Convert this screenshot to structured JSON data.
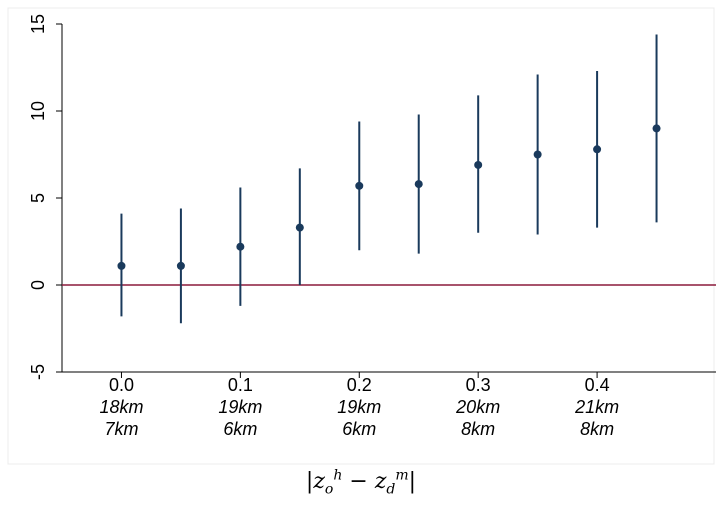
{
  "chart_data": {
    "type": "scatter",
    "subtype": "coefficient-plot-with-confidence-intervals",
    "x": [
      0.0,
      0.05,
      0.1,
      0.15,
      0.2,
      0.25,
      0.3,
      0.35,
      0.4,
      0.45
    ],
    "estimate": [
      1.1,
      1.1,
      2.2,
      3.3,
      5.7,
      5.8,
      6.9,
      7.5,
      7.8,
      9.0
    ],
    "ci_low": [
      -1.8,
      -2.2,
      -1.2,
      0.0,
      2.0,
      1.8,
      3.0,
      2.9,
      3.3,
      3.6
    ],
    "ci_high": [
      4.1,
      4.4,
      5.6,
      6.7,
      9.4,
      9.8,
      10.9,
      12.1,
      12.3,
      14.4
    ],
    "xlim": [
      -0.05,
      0.5
    ],
    "ylim": [
      -5,
      15
    ],
    "yticks": [
      -5,
      0,
      5,
      10,
      15
    ],
    "xticks": [
      {
        "value": 0.0,
        "lines": [
          "0.0",
          "18km",
          "7km"
        ]
      },
      {
        "value": 0.1,
        "lines": [
          "0.1",
          "19km",
          "6km"
        ]
      },
      {
        "value": 0.2,
        "lines": [
          "0.2",
          "19km",
          "6km"
        ]
      },
      {
        "value": 0.3,
        "lines": [
          "0.3",
          "20km",
          "8km"
        ]
      },
      {
        "value": 0.4,
        "lines": [
          "0.4",
          "21km",
          "8km"
        ]
      }
    ],
    "reference_line": 0,
    "xlabel": "|z_o^h − z_d^m|",
    "grid": false,
    "colors": {
      "points": "#1a3a5c",
      "reference_line": "#8b1a3b",
      "axis": "#000000"
    }
  }
}
